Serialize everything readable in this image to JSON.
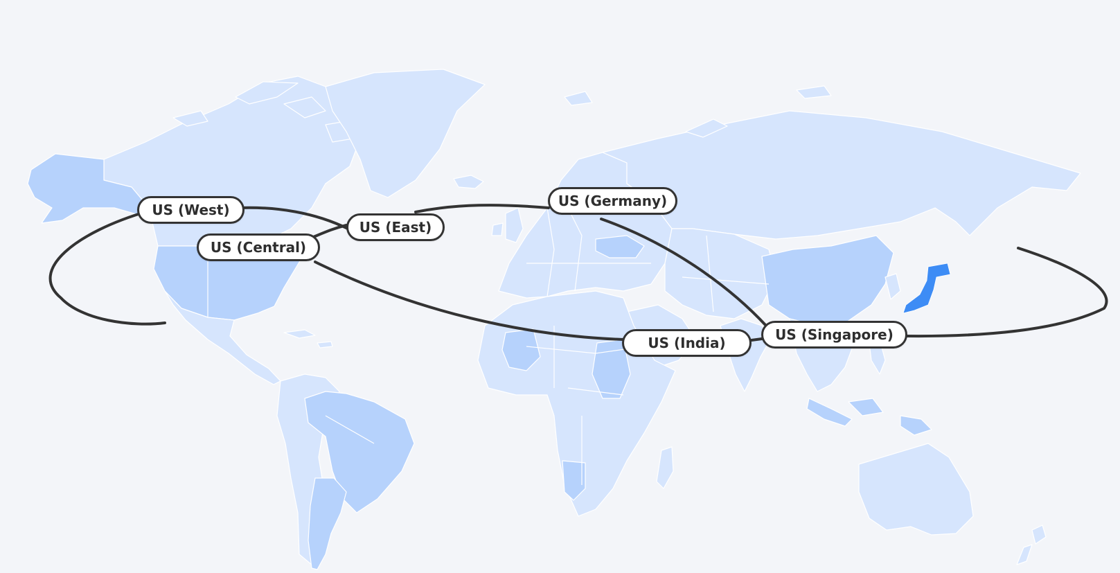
{
  "map": {
    "background_color": "#f3f5f9",
    "land_color_light": "#d6e5fd",
    "land_color_mid": "#b6d2fc",
    "highlight_color": "#3d8cf5",
    "highlighted_country": "Japan",
    "route_color": "#333333"
  },
  "regions": [
    {
      "id": "west",
      "label": "US (West)"
    },
    {
      "id": "central",
      "label": "US (Central)"
    },
    {
      "id": "east",
      "label": "US (East)"
    },
    {
      "id": "germany",
      "label": "US (Germany)"
    },
    {
      "id": "india",
      "label": "US (India)"
    },
    {
      "id": "singapore",
      "label": "US (Singapore)"
    }
  ]
}
